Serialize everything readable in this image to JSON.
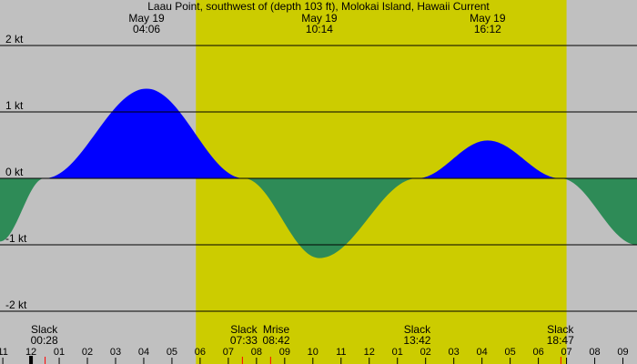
{
  "title": "Laau Point, southwest of (depth 103 ft), Molokai Island, Hawaii Current",
  "colors": {
    "background": "#c0c0c0",
    "daylight": "#cccc00",
    "flood": "#0000ff",
    "ebb": "#2e8b57",
    "grid": "#000000",
    "sun_marker": "#ff0000"
  },
  "chart_data": {
    "type": "area",
    "title": "Laau Point, southwest of (depth 103 ft), Molokai Island, Hawaii Current",
    "ylabel": "",
    "xlabel": "",
    "x_range_hours": [
      -13.1,
      9.5
    ],
    "ylim": [
      -2.1,
      2.1
    ],
    "y_ticks": [
      {
        "value": 2,
        "label": "2 kt"
      },
      {
        "value": 1,
        "label": "1 kt"
      },
      {
        "value": 0,
        "label": "0 kt"
      },
      {
        "value": -1,
        "label": "-1 kt"
      },
      {
        "value": -2,
        "label": "-2 kt"
      }
    ],
    "x_ticks": [
      {
        "hour": -13,
        "label": "11"
      },
      {
        "hour": -12,
        "label": "12"
      },
      {
        "hour": -11,
        "label": "01"
      },
      {
        "hour": -10,
        "label": "02"
      },
      {
        "hour": -9,
        "label": "03"
      },
      {
        "hour": -8,
        "label": "04"
      },
      {
        "hour": -7,
        "label": "05"
      },
      {
        "hour": -6,
        "label": "06"
      },
      {
        "hour": -5,
        "label": "07"
      },
      {
        "hour": -4,
        "label": "08"
      },
      {
        "hour": -3,
        "label": "09"
      },
      {
        "hour": -2,
        "label": "10"
      },
      {
        "hour": -1,
        "label": "11"
      },
      {
        "hour": 0,
        "label": "12"
      },
      {
        "hour": 1,
        "label": "01"
      },
      {
        "hour": 2,
        "label": "02"
      },
      {
        "hour": 3,
        "label": "03"
      },
      {
        "hour": 4,
        "label": "04"
      },
      {
        "hour": 5,
        "label": "05"
      },
      {
        "hour": 6,
        "label": "06"
      },
      {
        "hour": 7,
        "label": "07"
      },
      {
        "hour": 8,
        "label": "08"
      },
      {
        "hour": 9,
        "label": "09"
      }
    ],
    "midnight_hour": -12,
    "sun_markers_hours": [
      -11.5,
      -4.5,
      -3.5,
      6.8
    ],
    "daylight_hours": [
      -6.15,
      7.0
    ],
    "current_points": [
      {
        "hour": -13.1,
        "speed": -0.95
      },
      {
        "hour": -11.53,
        "speed": 0
      },
      {
        "hour": -7.9,
        "speed": 1.35
      },
      {
        "hour": -4.45,
        "speed": 0
      },
      {
        "hour": -1.77,
        "speed": -1.2
      },
      {
        "hour": 1.7,
        "speed": 0
      },
      {
        "hour": 4.2,
        "speed": 0.57
      },
      {
        "hour": 6.78,
        "speed": 0
      },
      {
        "hour": 9.5,
        "speed": -1.0
      }
    ],
    "top_labels": [
      {
        "hour": -7.9,
        "date": "May 19",
        "time": "04:06"
      },
      {
        "hour": -1.77,
        "date": "May 19",
        "time": "10:14"
      },
      {
        "hour": 4.2,
        "date": "May 19",
        "time": "16:12"
      }
    ],
    "bottom_labels": [
      {
        "hour": -11.53,
        "event": "Slack",
        "time": "00:28"
      },
      {
        "hour": -4.45,
        "event": "Slack",
        "time": "07:33"
      },
      {
        "hour": -3.3,
        "event": "Mrise",
        "time": "08:42"
      },
      {
        "hour": 1.7,
        "event": "Slack",
        "time": "13:42"
      },
      {
        "hour": 6.78,
        "event": "Slack",
        "time": "18:47"
      }
    ]
  }
}
